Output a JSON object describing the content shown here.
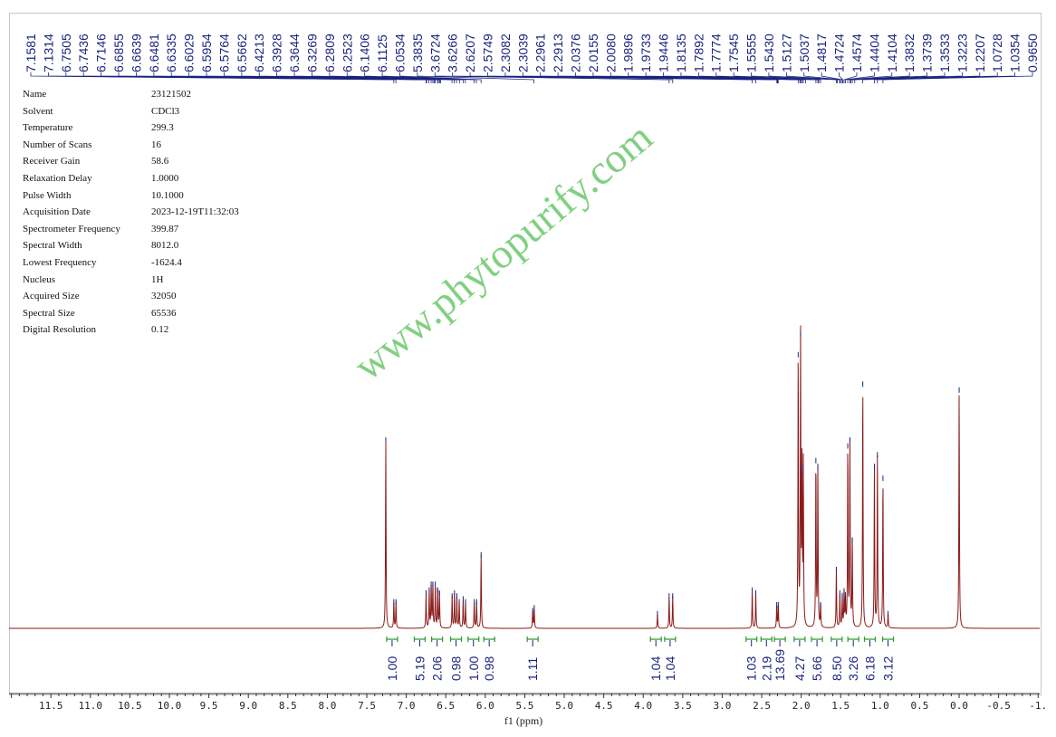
{
  "metadata": [
    {
      "key": "Name",
      "value": "23121502"
    },
    {
      "key": "Solvent",
      "value": "CDCl3"
    },
    {
      "key": "Temperature",
      "value": "299.3"
    },
    {
      "key": "Number of Scans",
      "value": "16"
    },
    {
      "key": "Receiver Gain",
      "value": "58.6"
    },
    {
      "key": "Relaxation Delay",
      "value": "1.0000"
    },
    {
      "key": "Pulse Width",
      "value": "10.1000"
    },
    {
      "key": "Acquisition Date",
      "value": "2023-12-19T11:32:03"
    },
    {
      "key": "Spectrometer Frequency",
      "value": "399.87"
    },
    {
      "key": "Spectral Width",
      "value": "8012.0"
    },
    {
      "key": "Lowest Frequency",
      "value": "-1624.4"
    },
    {
      "key": "Nucleus",
      "value": "1H"
    },
    {
      "key": "Acquired Size",
      "value": "32050"
    },
    {
      "key": "Spectral Size",
      "value": "65536"
    },
    {
      "key": "Digital Resolution",
      "value": "0.12"
    }
  ],
  "watermark": "www.phytopurify.com",
  "chart_data": {
    "type": "line",
    "xlabel": "f1 (ppm)",
    "xlim": [
      12.03,
      -1.02
    ],
    "x_reversed": true,
    "xticks": [
      "11.5",
      "11.0",
      "10.5",
      "10.0",
      "9.5",
      "9.0",
      "8.5",
      "8.0",
      "7.5",
      "7.0",
      "6.5",
      "6.0",
      "5.5",
      "5.0",
      "4.5",
      "4.0",
      "3.5",
      "3.0",
      "2.5",
      "2.0",
      "1.5",
      "1.0",
      "0.5",
      "0.0",
      "-0.5",
      "-1."
    ],
    "grid": false,
    "colors": {
      "spectrum": "#8b1a1a",
      "peak_labels": "#1a237e",
      "integral_brackets": "#2e9a2e",
      "integral_values": "#1a237e"
    },
    "peak_labels": [
      "7.1581",
      "7.1314",
      "6.7505",
      "6.7436",
      "6.7146",
      "6.6855",
      "6.6639",
      "6.6481",
      "6.6335",
      "6.6029",
      "6.5954",
      "6.5764",
      "6.5662",
      "6.4213",
      "6.3928",
      "6.3644",
      "6.3269",
      "6.2809",
      "6.2523",
      "6.1406",
      "6.1125",
      "6.0534",
      "5.3835",
      "3.6724",
      "3.6266",
      "2.6207",
      "2.5749",
      "2.3082",
      "2.3039",
      "2.2961",
      "2.2913",
      "2.0376",
      "2.0155",
      "2.0080",
      "1.9896",
      "1.9733",
      "1.9446",
      "1.8135",
      "1.7892",
      "1.7774",
      "1.7545",
      "1.5555",
      "1.5430",
      "1.5127",
      "1.5037",
      "1.4817",
      "1.4724",
      "1.4574",
      "1.4404",
      "1.4104",
      "1.3832",
      "1.3739",
      "1.3533",
      "1.3223",
      "1.2207",
      "1.0728",
      "1.0354",
      "0.9650"
    ],
    "peaks": [
      [
        7.26,
        0.64
      ],
      [
        7.158,
        0.09
      ],
      [
        7.131,
        0.09
      ],
      [
        6.75,
        0.12
      ],
      [
        6.71,
        0.13
      ],
      [
        6.685,
        0.15
      ],
      [
        6.664,
        0.15
      ],
      [
        6.633,
        0.15
      ],
      [
        6.603,
        0.13
      ],
      [
        6.58,
        0.12
      ],
      [
        6.42,
        0.11
      ],
      [
        6.39,
        0.12
      ],
      [
        6.36,
        0.11
      ],
      [
        6.33,
        0.09
      ],
      [
        6.28,
        0.1
      ],
      [
        6.25,
        0.09
      ],
      [
        6.14,
        0.09
      ],
      [
        6.11,
        0.09
      ],
      [
        6.053,
        0.25
      ],
      [
        5.4,
        0.06
      ],
      [
        5.38,
        0.07
      ],
      [
        3.82,
        0.05
      ],
      [
        3.672,
        0.11
      ],
      [
        3.627,
        0.11
      ],
      [
        2.62,
        0.13
      ],
      [
        2.575,
        0.12
      ],
      [
        2.31,
        0.08
      ],
      [
        2.29,
        0.08
      ],
      [
        2.038,
        0.93
      ],
      [
        2.008,
        1.0
      ],
      [
        1.99,
        0.53
      ],
      [
        1.973,
        0.55
      ],
      [
        1.814,
        0.57
      ],
      [
        1.789,
        0.55
      ],
      [
        1.754,
        0.08
      ],
      [
        1.555,
        0.2
      ],
      [
        1.51,
        0.12
      ],
      [
        1.48,
        0.11
      ],
      [
        1.457,
        0.12
      ],
      [
        1.44,
        0.1
      ],
      [
        1.41,
        0.62
      ],
      [
        1.383,
        0.64
      ],
      [
        1.353,
        0.3
      ],
      [
        1.22,
        0.83
      ],
      [
        1.073,
        0.55
      ],
      [
        1.035,
        0.59
      ],
      [
        0.965,
        0.51
      ],
      [
        0.9,
        0.05
      ],
      [
        0.0,
        0.81
      ]
    ],
    "integrals": [
      {
        "ppm": 7.18,
        "value": "1.00"
      },
      {
        "ppm": 6.83,
        "value": "5.19"
      },
      {
        "ppm": 6.61,
        "value": "2.06"
      },
      {
        "ppm": 6.37,
        "value": "0.98"
      },
      {
        "ppm": 6.15,
        "value": "1.00"
      },
      {
        "ppm": 5.95,
        "value": "0.98"
      },
      {
        "ppm": 5.4,
        "value": "1.11"
      },
      {
        "ppm": 3.84,
        "value": "1.04"
      },
      {
        "ppm": 3.66,
        "value": "1.04"
      },
      {
        "ppm": 2.63,
        "value": "1.03"
      },
      {
        "ppm": 2.44,
        "value": "2.19"
      },
      {
        "ppm": 2.27,
        "value": "13.69"
      },
      {
        "ppm": 2.02,
        "value": "4.27"
      },
      {
        "ppm": 1.8,
        "value": "5.66"
      },
      {
        "ppm": 1.55,
        "value": "8.50"
      },
      {
        "ppm": 1.34,
        "value": "3.26"
      },
      {
        "ppm": 1.13,
        "value": "6.18"
      },
      {
        "ppm": 0.9,
        "value": "3.12"
      }
    ]
  }
}
